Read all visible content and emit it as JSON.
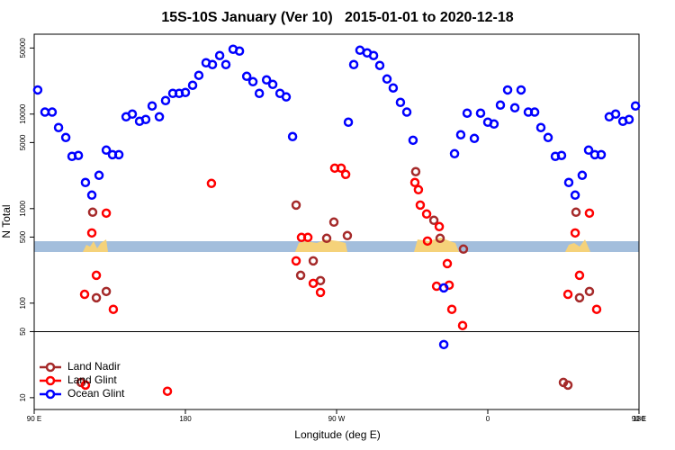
{
  "chart_data": {
    "type": "scatter",
    "title": "15S-10S January (Ver 10)   2015-01-01 to 2020-12-18",
    "xlabel": "Longitude (deg E)",
    "ylabel": "N Total",
    "log_y": true,
    "xlim": [
      90,
      450
    ],
    "ylim": [
      7.5,
      70000
    ],
    "xticks": [
      {
        "value": 90,
        "label": "90 E"
      },
      {
        "value": 180,
        "label": "180"
      },
      {
        "value": 270,
        "label": "90 W"
      },
      {
        "value": 360,
        "label": "0"
      },
      {
        "value": 450,
        "label": "90 E"
      },
      {
        "value": 540,
        "label": "180"
      }
    ],
    "yticks": [
      10,
      50,
      100,
      500,
      1000,
      5000,
      10000,
      50000
    ],
    "reference_line": 50,
    "legend": "bottom-left",
    "series": [
      {
        "name": "Land Nadir",
        "color": "#a52a2a",
        "x": [
          117.9,
          124.8,
          127,
          132.9,
          245.9,
          248.6,
          256.1,
          268.4,
          260.4,
          264.1,
          276.4,
          317.1,
          327.9,
          331.6,
          345.5,
          405,
          407.7,
          412.5,
          414.6,
          420.5
        ],
        "values": [
          14.5,
          916,
          114,
          133,
          1090,
          197,
          280,
          720,
          173,
          485,
          518,
          2460,
          752,
          485,
          373,
          14.5,
          13.6,
          916,
          114,
          133
        ]
      },
      {
        "name": "Land Glint",
        "color": "#ff0000",
        "x": [
          120,
          124.3,
          127,
          132.9,
          137.1,
          169.3,
          195.5,
          245.9,
          249.1,
          252.9,
          256.1,
          260.4,
          268.9,
          272.7,
          275.4,
          316.6,
          318.7,
          319.8,
          323.6,
          331.1,
          324.1,
          335.9,
          337,
          329.5,
          338.6,
          345,
          120.5,
          407.7,
          412,
          414.6,
          420.5,
          424.8
        ],
        "values": [
          124,
          553,
          197,
          896,
          86,
          11.7,
          1848,
          280,
          496,
          496,
          162,
          130,
          2680,
          2680,
          2300,
          1890,
          1585,
          1090,
          877,
          645,
          454,
          262,
          155,
          151,
          86,
          58,
          13.6,
          124,
          553,
          197,
          896,
          86
        ]
      },
      {
        "name": "Ocean Glint",
        "color": "#0000ff",
        "x": [
          92.1,
          96.4,
          100.7,
          104.5,
          108.8,
          112.5,
          116.3,
          120.5,
          124.3,
          128.6,
          132.9,
          136.6,
          140.4,
          144.7,
          148.4,
          152.7,
          156.4,
          160.2,
          164.5,
          168.2,
          172.5,
          176.3,
          180,
          184.3,
          188,
          192.3,
          196.1,
          200.4,
          204.1,
          208.4,
          212.2,
          216.5,
          220.2,
          224,
          228.3,
          232,
          236.3,
          240,
          243.8,
          277,
          280.2,
          283.9,
          288.2,
          292,
          295.7,
          300,
          303.7,
          308,
          311.8,
          315.5,
          340.2,
          343.9,
          347.7,
          352,
          355.7,
          360,
          363.7,
          367.5,
          371.8,
          376.1,
          379.8,
          384.1,
          387.9,
          391.6,
          395.9,
          400.2,
          403.9,
          408.2,
          412,
          416.2,
          420,
          423.7,
          427.5,
          432.3,
          436.1,
          440.4,
          444.1,
          447.9,
          333.8,
          333.8
        ],
        "values": [
          18000,
          10500,
          10500,
          7200,
          5650,
          3570,
          3650,
          1890,
          1390,
          2250,
          4160,
          3720,
          3720,
          9360,
          10000,
          8390,
          8770,
          12190,
          9360,
          13900,
          16560,
          16560,
          16930,
          20180,
          25700,
          34900,
          33400,
          41600,
          33400,
          48500,
          46400,
          25100,
          22000,
          16560,
          23000,
          20600,
          16560,
          15200,
          5780,
          8210,
          33400,
          47400,
          44400,
          41600,
          32700,
          23500,
          18900,
          13300,
          10500,
          5290,
          3810,
          6040,
          10230,
          5530,
          10230,
          8210,
          7850,
          12450,
          18000,
          11660,
          18000,
          10500,
          10500,
          7200,
          5650,
          3570,
          3650,
          1890,
          1390,
          2250,
          4160,
          3720,
          3720,
          9360,
          10000,
          8390,
          8770,
          12190,
          145,
          36.5
        ]
      }
    ]
  }
}
